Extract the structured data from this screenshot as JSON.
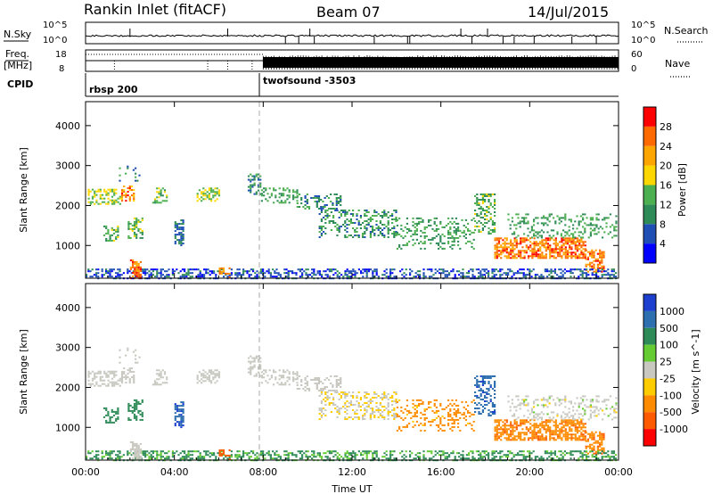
{
  "header": {
    "title": "Rankin Inlet (fitACF)",
    "beam": "Beam 07",
    "date": "14/Jul/2015"
  },
  "noise_panel": {
    "left_label": "N.Sky",
    "right_label": "N.Search",
    "left_ticks": [
      "10^5",
      "10^0"
    ],
    "right_ticks": [
      "10^5",
      "10^0"
    ]
  },
  "freq_panel": {
    "left_label_1": "Freq.",
    "left_label_2": "[MHz]",
    "right_label": "Nave",
    "left_ticks": [
      "18",
      "8"
    ],
    "right_ticks": [
      "60",
      "0"
    ]
  },
  "cpid_panel": {
    "label": "CPID",
    "modes": [
      {
        "name": "rbsp 200",
        "start_hour": 0
      },
      {
        "name": "twofsound -3503",
        "start_hour": 8
      }
    ]
  },
  "colors": {
    "power_scale": [
      "#0000ff",
      "#1f4fb5",
      "#2e8b57",
      "#4caf50",
      "#ffd700",
      "#ffa500",
      "#ff6a00",
      "#ff0000"
    ],
    "velocity_scale": [
      "#1c3fd0",
      "#2e6fb0",
      "#2e8b57",
      "#66cc33",
      "#c8c8c0",
      "#ffcc00",
      "#ff8c00",
      "#ff5a00",
      "#ff0000"
    ]
  },
  "chart_data": [
    {
      "type": "heatmap",
      "name": "power",
      "ylabel": "Slant Range [km]",
      "yticks": [
        1000,
        2000,
        3000,
        4000
      ],
      "ylim": [
        180,
        4600
      ],
      "xlim": [
        0,
        24
      ],
      "colorbar_label": "Power [dB]",
      "colorbar_ticks": [
        4,
        8,
        12,
        16,
        20,
        24,
        28
      ],
      "colorbar_range": [
        0,
        32
      ]
    },
    {
      "type": "heatmap",
      "name": "velocity",
      "ylabel": "Slant Range [km]",
      "yticks": [
        1000,
        2000,
        3000,
        4000
      ],
      "ylim": [
        180,
        4600
      ],
      "xlim": [
        0,
        24
      ],
      "xticks": [
        "00:00",
        "04:00",
        "08:00",
        "12:00",
        "16:00",
        "20:00",
        "00:00"
      ],
      "xlabel": "Time UT",
      "colorbar_label": "Velocity [m s^-1]",
      "colorbar_ticks": [
        "1000",
        "500",
        "100",
        "25",
        "-25",
        "-100",
        "-500",
        "-1000"
      ]
    }
  ],
  "scatter_regions": [
    {
      "t0": 0.1,
      "t1": 1.6,
      "r0": 2050,
      "r1": 2420,
      "d": 0.55,
      "pw": [
        12,
        20
      ],
      "vel": [
        -20,
        20
      ]
    },
    {
      "t0": 1.6,
      "t1": 2.2,
      "r0": 2100,
      "r1": 2500,
      "d": 0.5,
      "pw": [
        18,
        30
      ],
      "vel": [
        -20,
        20
      ]
    },
    {
      "t0": 1.5,
      "t1": 2.5,
      "r0": 2600,
      "r1": 3000,
      "d": 0.18,
      "pw": [
        6,
        14
      ],
      "vel": [
        -20,
        20
      ]
    },
    {
      "t0": 0.8,
      "t1": 1.5,
      "r0": 1100,
      "r1": 1500,
      "d": 0.45,
      "pw": [
        10,
        18
      ],
      "vel": [
        120,
        400
      ]
    },
    {
      "t0": 1.9,
      "t1": 2.6,
      "r0": 1200,
      "r1": 1700,
      "d": 0.45,
      "pw": [
        10,
        18
      ],
      "vel": [
        120,
        400
      ]
    },
    {
      "t0": 3.0,
      "t1": 3.7,
      "r0": 2050,
      "r1": 2450,
      "d": 0.45,
      "pw": [
        10,
        18
      ],
      "vel": [
        -20,
        20
      ]
    },
    {
      "t0": 4.0,
      "t1": 4.4,
      "r0": 1000,
      "r1": 1650,
      "d": 0.6,
      "pw": [
        4,
        10
      ],
      "vel": [
        600,
        1200
      ]
    },
    {
      "t0": 5.0,
      "t1": 6.0,
      "r0": 2100,
      "r1": 2450,
      "d": 0.55,
      "pw": [
        12,
        20
      ],
      "vel": [
        -20,
        20
      ]
    },
    {
      "t0": 7.3,
      "t1": 7.9,
      "r0": 2300,
      "r1": 2800,
      "d": 0.4,
      "pw": [
        6,
        14
      ],
      "vel": [
        -20,
        20
      ]
    },
    {
      "t0": 7.9,
      "t1": 9.5,
      "r0": 2050,
      "r1": 2450,
      "d": 0.35,
      "pw": [
        8,
        16
      ],
      "vel": [
        -20,
        20
      ]
    },
    {
      "t0": 9.5,
      "t1": 11.5,
      "r0": 1900,
      "r1": 2300,
      "d": 0.3,
      "pw": [
        6,
        14
      ],
      "vel": [
        -20,
        20
      ]
    },
    {
      "t0": 10.5,
      "t1": 14.0,
      "r0": 1200,
      "r1": 1900,
      "d": 0.35,
      "pw": [
        6,
        16
      ],
      "vel": [
        -60,
        20
      ]
    },
    {
      "t0": 14.0,
      "t1": 17.5,
      "r0": 900,
      "r1": 1700,
      "d": 0.3,
      "pw": [
        8,
        16
      ],
      "vel": [
        -300,
        -80
      ]
    },
    {
      "t0": 17.5,
      "t1": 18.4,
      "r0": 1300,
      "r1": 2300,
      "d": 0.45,
      "pw": [
        8,
        18
      ],
      "vel": [
        500,
        1100
      ]
    },
    {
      "t0": 18.4,
      "t1": 22.5,
      "r0": 700,
      "r1": 1200,
      "d": 0.65,
      "pw": [
        20,
        30
      ],
      "vel": [
        -600,
        -100
      ]
    },
    {
      "t0": 22.5,
      "t1": 23.3,
      "r0": 350,
      "r1": 900,
      "d": 0.55,
      "pw": [
        20,
        30
      ],
      "vel": [
        -600,
        -100
      ]
    },
    {
      "t0": 19.0,
      "t1": 23.9,
      "r0": 1200,
      "r1": 1800,
      "d": 0.25,
      "pw": [
        8,
        16
      ],
      "vel": [
        -30,
        30
      ]
    },
    {
      "t0": 0.0,
      "t1": 23.9,
      "r0": 180,
      "r1": 420,
      "d": 0.45,
      "pw": [
        2,
        10
      ],
      "vel": [
        40,
        250
      ]
    },
    {
      "t0": 2.0,
      "t1": 2.5,
      "r0": 200,
      "r1": 650,
      "d": 0.6,
      "pw": [
        22,
        30
      ],
      "vel": [
        -20,
        20
      ]
    },
    {
      "t0": 6.0,
      "t1": 6.6,
      "r0": 200,
      "r1": 450,
      "d": 0.4,
      "pw": [
        20,
        28
      ],
      "vel": [
        -900,
        -600
      ]
    }
  ]
}
